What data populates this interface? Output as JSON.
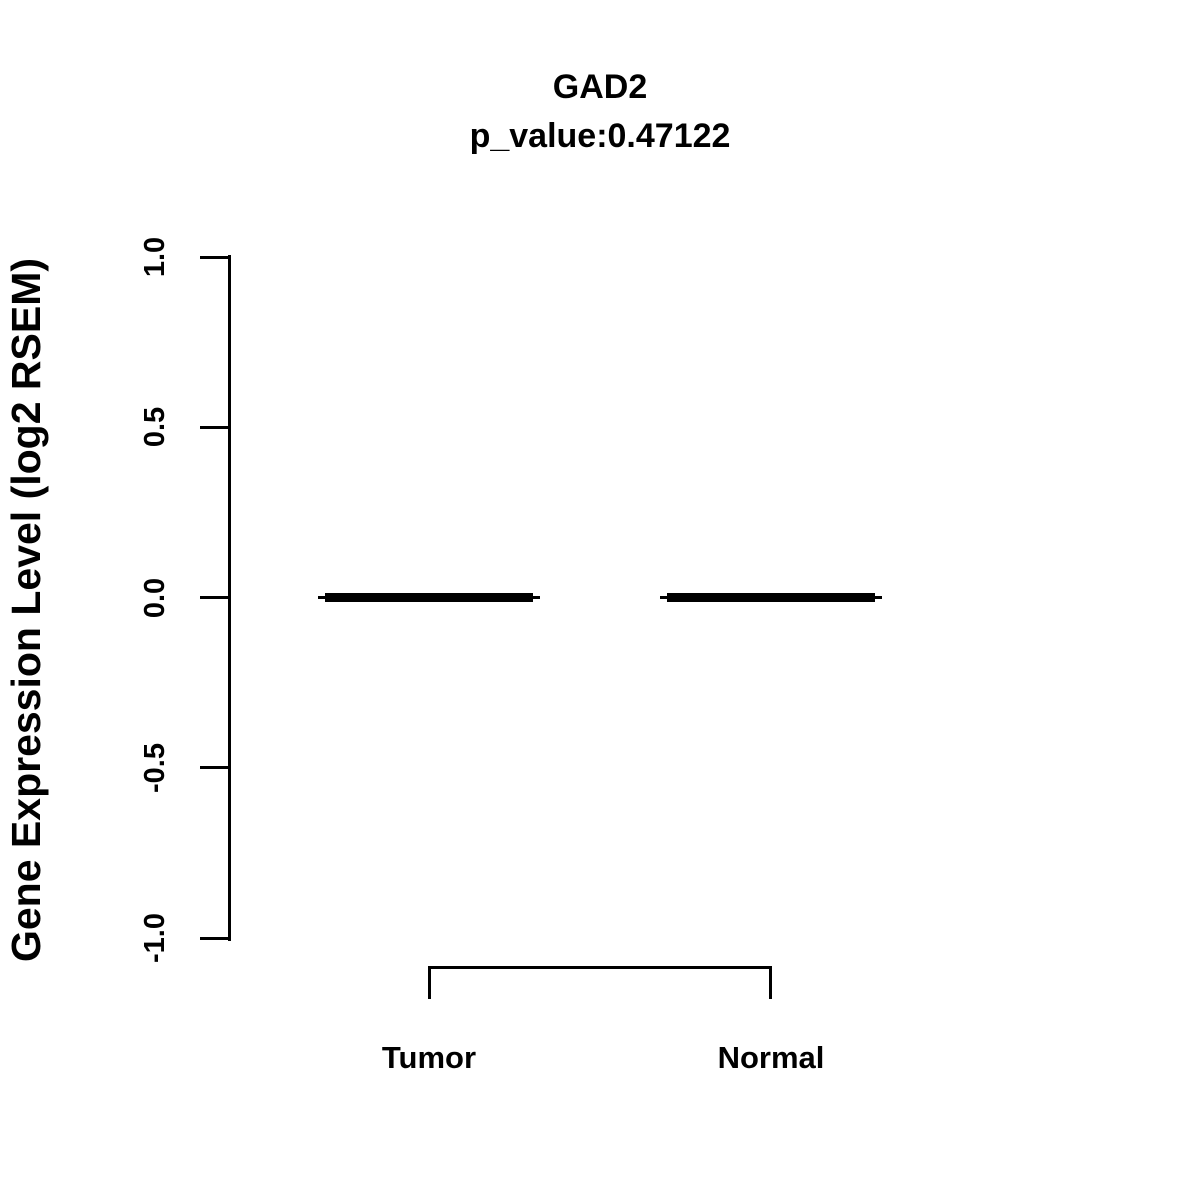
{
  "chart_data": {
    "type": "boxplot",
    "title": "GAD2",
    "subtitle": "p_value:0.47122",
    "ylabel": "Gene Expression Level (log2 RSEM)",
    "xlabel": "",
    "ylim": [
      -1.0,
      1.0
    ],
    "yticks": {
      "values": [
        1.0,
        0.5,
        0.0,
        -0.5,
        -1.0
      ],
      "labels": [
        "1.0",
        "0.5",
        "0.0",
        "-0.5",
        "-1.0"
      ]
    },
    "categories": [
      "Tumor",
      "Normal"
    ],
    "series": [
      {
        "name": "Tumor",
        "median": 0.0,
        "q1": 0.0,
        "q3": 0.0,
        "whisker_low": 0.0,
        "whisker_high": 0.0
      },
      {
        "name": "Normal",
        "median": 0.0,
        "q1": 0.0,
        "q3": 0.0,
        "whisker_low": 0.0,
        "whisker_high": 0.0
      }
    ],
    "grid": false,
    "legend": null,
    "comparison_bracket": {
      "between": [
        "Tumor",
        "Normal"
      ]
    },
    "colors": {
      "foreground": "#000000",
      "background": "#ffffff"
    }
  }
}
